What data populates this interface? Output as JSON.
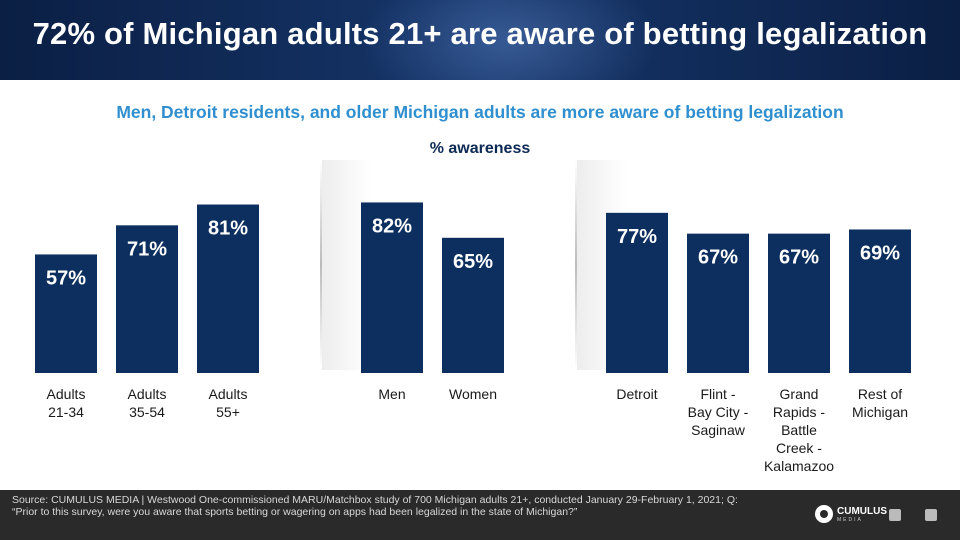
{
  "header": {
    "title": "72% of Michigan adults 21+ are aware of betting legalization"
  },
  "subtitle": "Men, Detroit residents, and older Michigan adults are more aware of betting legalization",
  "metric_label": "% awareness",
  "footer": {
    "source": "Source: CUMULUS MEDIA | Westwood One-commissioned MARU/Matchbox study of 700 Michigan adults 21+, conducted January 29-February 1, 2021; Q: “Prior to this survey, were you aware that sports betting or wagering on apps had been legalized in the state of Michigan?”",
    "logo_text": "CUMULUS",
    "logo_sub": "MEDIA"
  },
  "colors": {
    "bar": "#0d2f60",
    "bar_label": "#ffffff",
    "subtitle": "#2f8fcf"
  },
  "chart_data": {
    "type": "bar",
    "groups": [
      {
        "categories": [
          "Adults 21-34",
          "Adults 35-54",
          "Adults 55+"
        ],
        "values": [
          57,
          71,
          81
        ]
      },
      {
        "categories": [
          "Men",
          "Women"
        ],
        "values": [
          82,
          65
        ]
      },
      {
        "categories": [
          "Detroit",
          "Flint - Bay City - Saginaw",
          "Grand Rapids - Battle Creek - Kalamazoo",
          "Rest of Michigan"
        ],
        "values": [
          77,
          67,
          67,
          69
        ]
      }
    ],
    "value_suffix": "%",
    "ylim": [
      0,
      100
    ],
    "grid": false
  }
}
